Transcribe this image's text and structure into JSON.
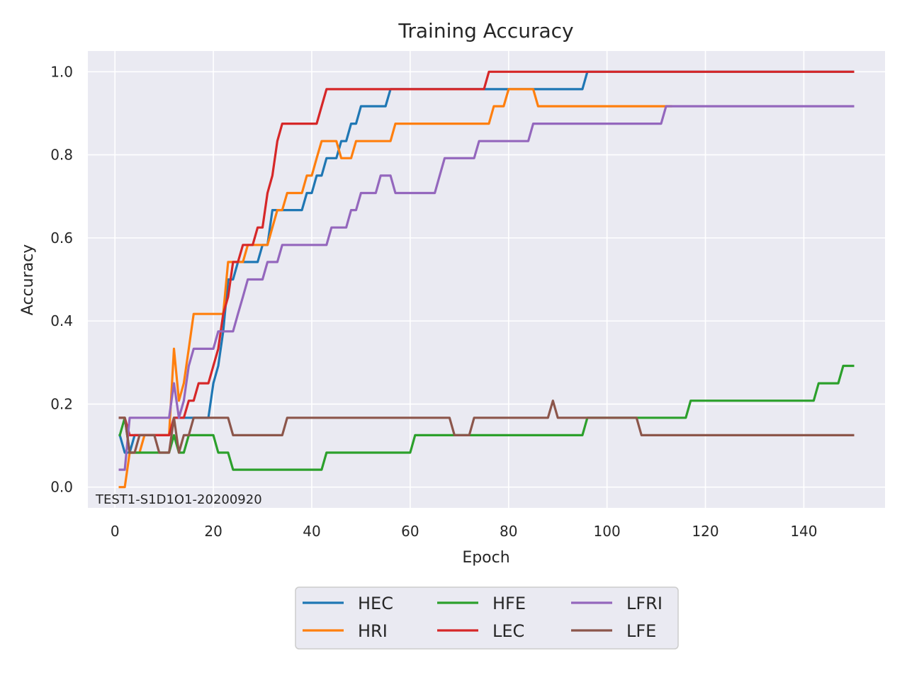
{
  "chart_data": {
    "type": "line",
    "title": "Training Accuracy",
    "xlabel": "Epoch",
    "ylabel": "Accuracy",
    "xlim": [
      -5.5,
      156.5
    ],
    "ylim": [
      -0.05,
      1.05
    ],
    "xticks": [
      0,
      20,
      40,
      60,
      80,
      100,
      120,
      140
    ],
    "yticks": [
      0.0,
      0.2,
      0.4,
      0.6,
      0.8,
      1.0
    ],
    "grid": true,
    "legend_position": "bottom-center",
    "annotation": "TEST1-S1D1O1-20200920",
    "background_color": "#eaeaf2",
    "series": [
      {
        "name": "HEC",
        "color": "#1f77b4",
        "points": [
          [
            1,
            0.125
          ],
          [
            2,
            0.083
          ],
          [
            3,
            0.083
          ],
          [
            4,
            0.125
          ],
          [
            5,
            0.125
          ],
          [
            11,
            0.125
          ],
          [
            12,
            0.167
          ],
          [
            19,
            0.167
          ],
          [
            20,
            0.25
          ],
          [
            21,
            0.292
          ],
          [
            22,
            0.375
          ],
          [
            23,
            0.5
          ],
          [
            24,
            0.5
          ],
          [
            25,
            0.542
          ],
          [
            29,
            0.542
          ],
          [
            30,
            0.583
          ],
          [
            31,
            0.583
          ],
          [
            32,
            0.667
          ],
          [
            38,
            0.667
          ],
          [
            39,
            0.708
          ],
          [
            40,
            0.708
          ],
          [
            41,
            0.75
          ],
          [
            42,
            0.75
          ],
          [
            43,
            0.792
          ],
          [
            45,
            0.792
          ],
          [
            46,
            0.833
          ],
          [
            47,
            0.833
          ],
          [
            48,
            0.875
          ],
          [
            49,
            0.875
          ],
          [
            50,
            0.917
          ],
          [
            55,
            0.917
          ],
          [
            56,
            0.958
          ],
          [
            95,
            0.958
          ],
          [
            96,
            1.0
          ],
          [
            150,
            1.0
          ]
        ]
      },
      {
        "name": "HRI",
        "color": "#ff7f0e",
        "points": [
          [
            1,
            0.0
          ],
          [
            2,
            0.0
          ],
          [
            3,
            0.083
          ],
          [
            4,
            0.083
          ],
          [
            5,
            0.083
          ],
          [
            6,
            0.125
          ],
          [
            11,
            0.125
          ],
          [
            12,
            0.333
          ],
          [
            13,
            0.208
          ],
          [
            14,
            0.25
          ],
          [
            15,
            0.333
          ],
          [
            16,
            0.417
          ],
          [
            22,
            0.417
          ],
          [
            23,
            0.542
          ],
          [
            26,
            0.542
          ],
          [
            27,
            0.583
          ],
          [
            31,
            0.583
          ],
          [
            32,
            0.625
          ],
          [
            33,
            0.667
          ],
          [
            34,
            0.667
          ],
          [
            35,
            0.708
          ],
          [
            38,
            0.708
          ],
          [
            39,
            0.75
          ],
          [
            40,
            0.75
          ],
          [
            41,
            0.792
          ],
          [
            42,
            0.833
          ],
          [
            45,
            0.833
          ],
          [
            46,
            0.792
          ],
          [
            48,
            0.792
          ],
          [
            49,
            0.833
          ],
          [
            56,
            0.833
          ],
          [
            57,
            0.875
          ],
          [
            76,
            0.875
          ],
          [
            77,
            0.917
          ],
          [
            79,
            0.917
          ],
          [
            80,
            0.958
          ],
          [
            85,
            0.958
          ],
          [
            86,
            0.917
          ],
          [
            113,
            0.917
          ]
        ]
      },
      {
        "name": "HFE",
        "color": "#2ca02c",
        "points": [
          [
            1,
            0.125
          ],
          [
            2,
            0.167
          ],
          [
            3,
            0.083
          ],
          [
            11,
            0.083
          ],
          [
            12,
            0.125
          ],
          [
            13,
            0.083
          ],
          [
            14,
            0.083
          ],
          [
            15,
            0.125
          ],
          [
            20,
            0.125
          ],
          [
            21,
            0.083
          ],
          [
            23,
            0.083
          ],
          [
            24,
            0.042
          ],
          [
            42,
            0.042
          ],
          [
            43,
            0.083
          ],
          [
            60,
            0.083
          ],
          [
            61,
            0.125
          ],
          [
            95,
            0.125
          ],
          [
            96,
            0.167
          ],
          [
            116,
            0.167
          ],
          [
            117,
            0.208
          ],
          [
            142,
            0.208
          ],
          [
            143,
            0.25
          ],
          [
            147,
            0.25
          ],
          [
            148,
            0.292
          ],
          [
            150,
            0.292
          ]
        ]
      },
      {
        "name": "LEC",
        "color": "#d62728",
        "points": [
          [
            1,
            0.167
          ],
          [
            2,
            0.167
          ],
          [
            3,
            0.125
          ],
          [
            11,
            0.125
          ],
          [
            12,
            0.167
          ],
          [
            14,
            0.167
          ],
          [
            15,
            0.208
          ],
          [
            16,
            0.208
          ],
          [
            17,
            0.25
          ],
          [
            19,
            0.25
          ],
          [
            20,
            0.292
          ],
          [
            21,
            0.333
          ],
          [
            22,
            0.417
          ],
          [
            23,
            0.458
          ],
          [
            24,
            0.542
          ],
          [
            25,
            0.542
          ],
          [
            26,
            0.583
          ],
          [
            28,
            0.583
          ],
          [
            29,
            0.625
          ],
          [
            30,
            0.625
          ],
          [
            31,
            0.708
          ],
          [
            32,
            0.75
          ],
          [
            33,
            0.833
          ],
          [
            34,
            0.875
          ],
          [
            41,
            0.875
          ],
          [
            42,
            0.917
          ],
          [
            43,
            0.958
          ],
          [
            75,
            0.958
          ],
          [
            76,
            1.0
          ],
          [
            150,
            1.0
          ]
        ]
      },
      {
        "name": "LFRI",
        "color": "#9467bd",
        "points": [
          [
            1,
            0.042
          ],
          [
            2,
            0.042
          ],
          [
            3,
            0.167
          ],
          [
            11,
            0.167
          ],
          [
            12,
            0.25
          ],
          [
            13,
            0.167
          ],
          [
            14,
            0.208
          ],
          [
            15,
            0.292
          ],
          [
            16,
            0.333
          ],
          [
            20,
            0.333
          ],
          [
            21,
            0.375
          ],
          [
            24,
            0.375
          ],
          [
            25,
            0.417
          ],
          [
            26,
            0.458
          ],
          [
            27,
            0.5
          ],
          [
            30,
            0.5
          ],
          [
            31,
            0.542
          ],
          [
            33,
            0.542
          ],
          [
            34,
            0.583
          ],
          [
            43,
            0.583
          ],
          [
            44,
            0.625
          ],
          [
            47,
            0.625
          ],
          [
            48,
            0.667
          ],
          [
            49,
            0.667
          ],
          [
            50,
            0.708
          ],
          [
            53,
            0.708
          ],
          [
            54,
            0.75
          ],
          [
            56,
            0.75
          ],
          [
            57,
            0.708
          ],
          [
            65,
            0.708
          ],
          [
            66,
            0.75
          ],
          [
            67,
            0.792
          ],
          [
            73,
            0.792
          ],
          [
            74,
            0.833
          ],
          [
            84,
            0.833
          ],
          [
            85,
            0.875
          ],
          [
            111,
            0.875
          ],
          [
            112,
            0.917
          ],
          [
            150,
            0.917
          ]
        ]
      },
      {
        "name": "LFE",
        "color": "#8c564b",
        "points": [
          [
            1,
            0.167
          ],
          [
            2,
            0.167
          ],
          [
            3,
            0.083
          ],
          [
            4,
            0.083
          ],
          [
            5,
            0.125
          ],
          [
            8,
            0.125
          ],
          [
            9,
            0.083
          ],
          [
            11,
            0.083
          ],
          [
            12,
            0.167
          ],
          [
            13,
            0.083
          ],
          [
            14,
            0.125
          ],
          [
            15,
            0.125
          ],
          [
            16,
            0.167
          ],
          [
            23,
            0.167
          ],
          [
            24,
            0.125
          ],
          [
            34,
            0.125
          ],
          [
            35,
            0.167
          ],
          [
            68,
            0.167
          ],
          [
            69,
            0.125
          ],
          [
            72,
            0.125
          ],
          [
            73,
            0.167
          ],
          [
            88,
            0.167
          ],
          [
            89,
            0.208
          ],
          [
            90,
            0.167
          ],
          [
            106,
            0.167
          ],
          [
            107,
            0.125
          ],
          [
            150,
            0.125
          ]
        ]
      }
    ]
  }
}
